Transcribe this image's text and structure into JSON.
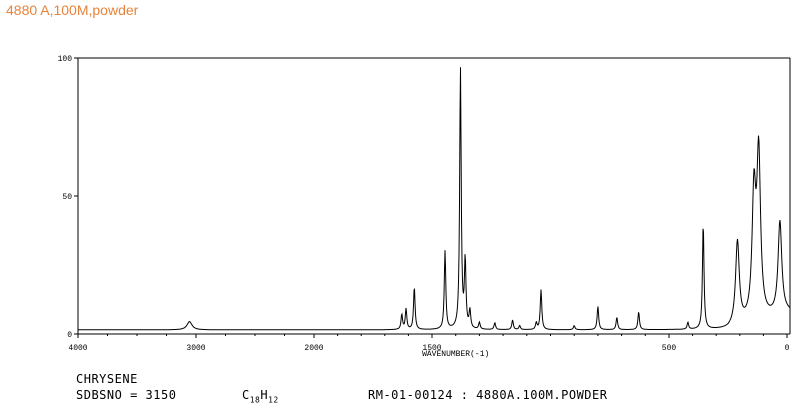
{
  "page_title": "4880 A,100M,powder",
  "chart_data": {
    "type": "line",
    "xlabel": "WAVENUMBER(-1)",
    "ylabel": "",
    "xlim": [
      4000,
      0
    ],
    "ylim": [
      0,
      100
    ],
    "x_ticks": [
      4000,
      3000,
      2000,
      1500,
      500,
      0
    ],
    "x_tick_labels": [
      "4000",
      "3000",
      "2000",
      "1500",
      "500",
      "0"
    ],
    "y_ticks": [
      0,
      50,
      100
    ],
    "y_tick_labels": [
      "0",
      "50",
      "100"
    ],
    "grid": false,
    "baseline": 1.5,
    "series": [
      {
        "peaks": [
          {
            "x": 3055,
            "y": 4.5
          },
          {
            "x": 1628,
            "y": 7
          },
          {
            "x": 1610,
            "y": 9
          },
          {
            "x": 1575,
            "y": 17
          },
          {
            "x": 1445,
            "y": 30
          },
          {
            "x": 1380,
            "y": 96
          },
          {
            "x": 1360,
            "y": 26
          },
          {
            "x": 1340,
            "y": 8
          },
          {
            "x": 1300,
            "y": 4
          },
          {
            "x": 1235,
            "y": 4
          },
          {
            "x": 1160,
            "y": 5
          },
          {
            "x": 1130,
            "y": 3
          },
          {
            "x": 1060,
            "y": 4
          },
          {
            "x": 1040,
            "y": 16
          },
          {
            "x": 900,
            "y": 3
          },
          {
            "x": 800,
            "y": 10
          },
          {
            "x": 720,
            "y": 6
          },
          {
            "x": 628,
            "y": 8
          },
          {
            "x": 420,
            "y": 4
          },
          {
            "x": 355,
            "y": 40
          },
          {
            "x": 210,
            "y": 32
          },
          {
            "x": 140,
            "y": 46
          },
          {
            "x": 120,
            "y": 60
          },
          {
            "x": 30,
            "y": 35
          }
        ]
      }
    ]
  },
  "footer": {
    "compound": "CHRYSENE",
    "sdbs": "SDBSNO = 3150",
    "formula_c": "C",
    "formula_c_sub": "18",
    "formula_h": "H",
    "formula_h_sub": "12",
    "rm": "RM-01-00124 : 4880A.100M.POWDER"
  }
}
